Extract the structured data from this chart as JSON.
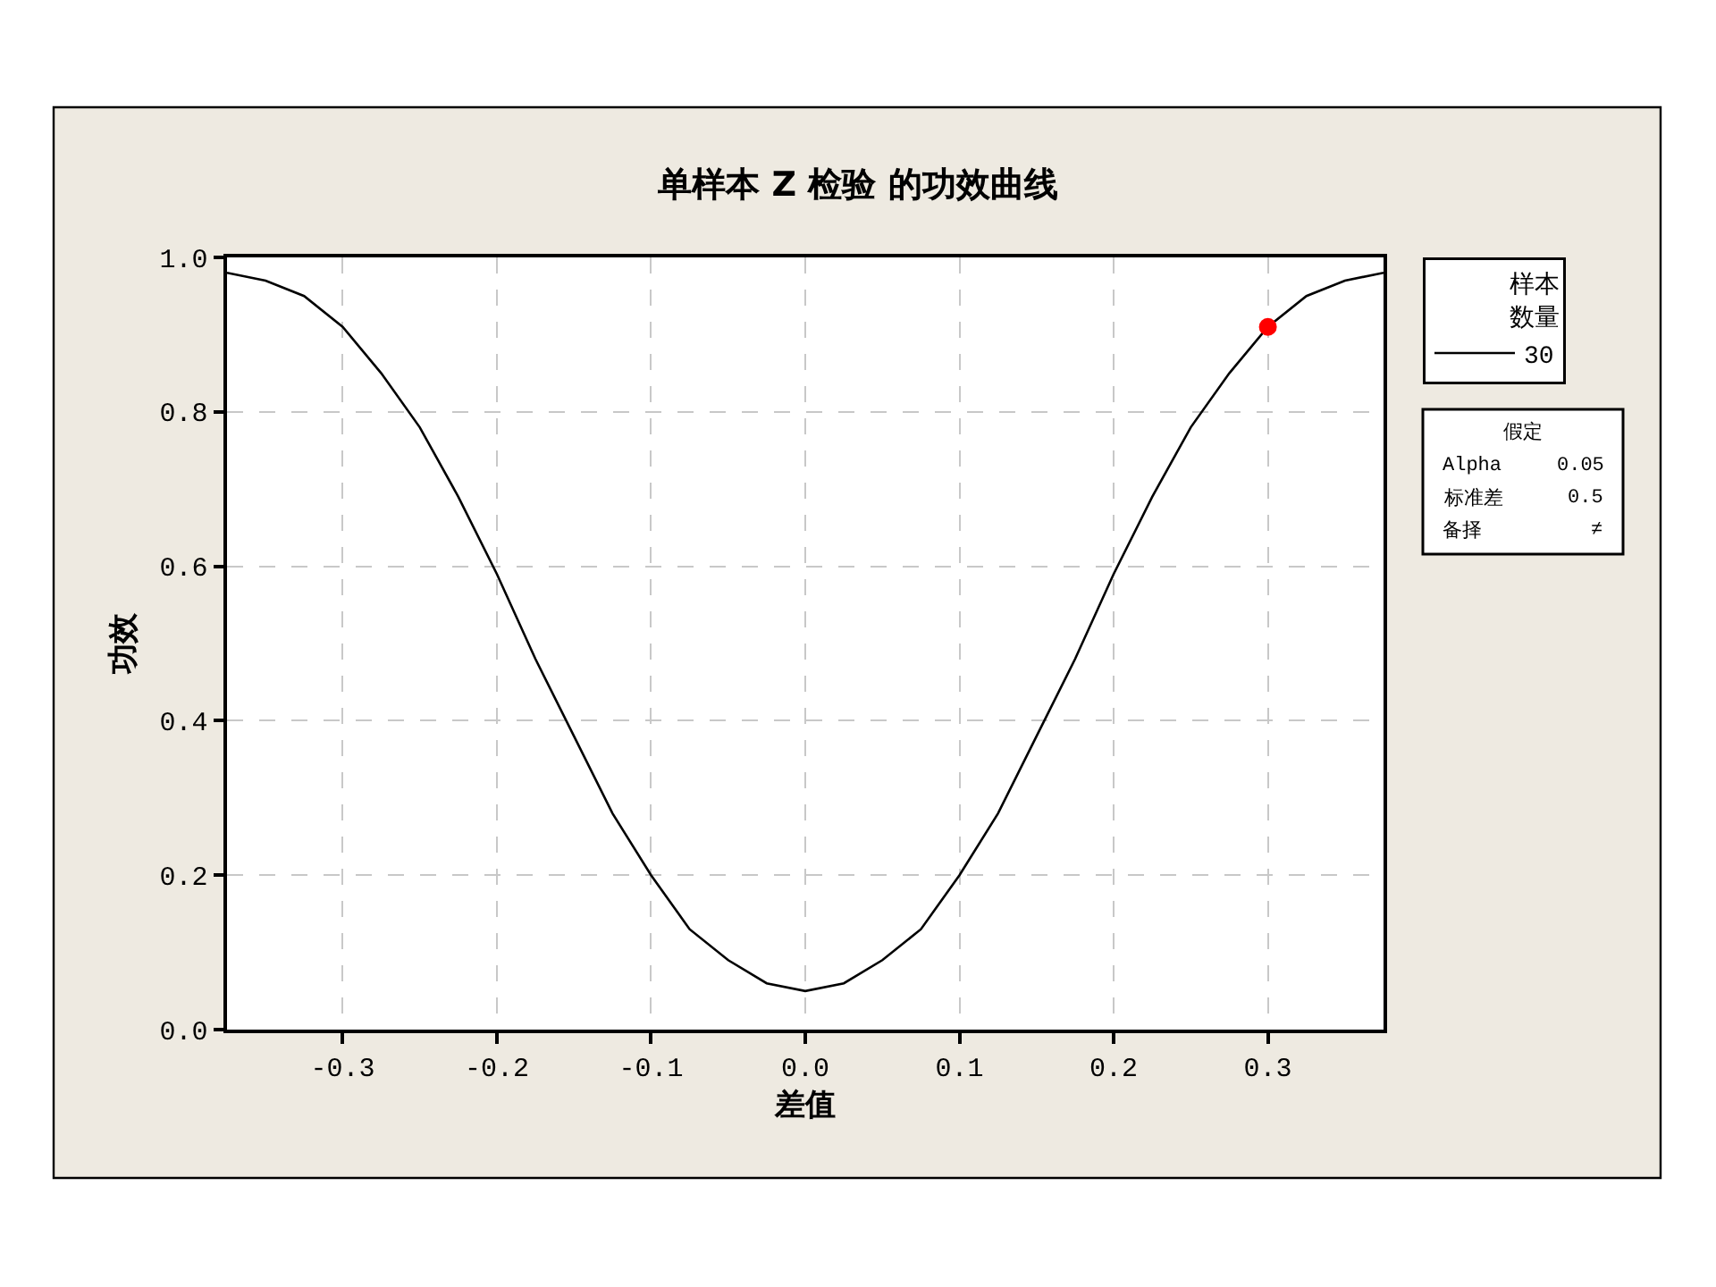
{
  "chart_data": {
    "type": "line",
    "title": "单样本 Z 检验 的功效曲线",
    "xlabel": "差值",
    "ylabel": "功效",
    "legend_title": "样本数量",
    "series": [
      {
        "name": "30",
        "color": "#000000",
        "marker": "none",
        "line_style": "solid",
        "x": [
          -0.375,
          -0.35,
          -0.325,
          -0.3,
          -0.275,
          -0.25,
          -0.225,
          -0.2,
          -0.175,
          -0.15,
          -0.125,
          -0.1,
          -0.075,
          -0.05,
          -0.025,
          0,
          0.025,
          0.05,
          0.075,
          0.1,
          0.125,
          0.15,
          0.175,
          0.2,
          0.225,
          0.25,
          0.275,
          0.3,
          0.325,
          0.35,
          0.375
        ],
        "values": [
          0.98,
          0.97,
          0.95,
          0.91,
          0.85,
          0.78,
          0.69,
          0.59,
          0.48,
          0.38,
          0.28,
          0.2,
          0.13,
          0.09,
          0.06,
          0.05,
          0.06,
          0.09,
          0.13,
          0.2,
          0.28,
          0.38,
          0.48,
          0.59,
          0.69,
          0.78,
          0.85,
          0.91,
          0.95,
          0.97,
          0.98
        ]
      },
      {
        "type": "scatter",
        "color": "#ff0000",
        "marker": "circle",
        "x": [
          0.3
        ],
        "values": [
          0.91
        ]
      }
    ],
    "annotations": [
      "假定",
      "Alpha",
      "0.05",
      "标准差",
      "0.5",
      "备择",
      "≠"
    ],
    "xlim": [
      -0.375,
      0.375
    ],
    "xticks": [
      -0.3,
      -0.2,
      -0.1,
      {
        "value": 0,
        "label": "0.0"
      },
      0.1,
      0.2,
      0.3
    ],
    "ylim": [
      0,
      1
    ],
    "yticks": [
      {
        "value": 0,
        "label": "0.0"
      },
      0.2,
      0.4,
      0.6,
      0.8,
      {
        "value": 1,
        "label": "1.0"
      }
    ],
    "grid": true,
    "legend": "right"
  }
}
